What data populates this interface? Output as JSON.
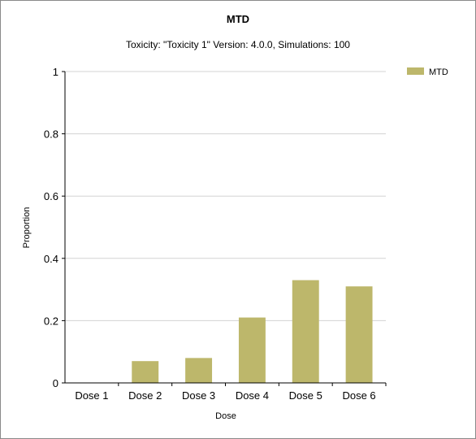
{
  "chart_data": {
    "type": "bar",
    "title": "MTD",
    "subtitle": "Toxicity: \"Toxicity 1\" Version: 4.0.0, Simulations: 100",
    "xlabel": "Dose",
    "ylabel": "Proportion",
    "categories": [
      "Dose 1",
      "Dose 2",
      "Dose 3",
      "Dose 4",
      "Dose 5",
      "Dose 6"
    ],
    "series": [
      {
        "name": "MTD",
        "values": [
          0,
          0.07,
          0.08,
          0.21,
          0.33,
          0.31
        ],
        "color": "#bdb76b"
      }
    ],
    "ylim": [
      0,
      1
    ],
    "yticks": [
      0,
      0.2,
      0.4,
      0.6,
      0.8,
      1
    ],
    "ytick_labels": [
      "0",
      "0.2",
      "0.4",
      "0.6",
      "0.8",
      "1"
    ],
    "grid": true,
    "legend_position": "top-right"
  }
}
